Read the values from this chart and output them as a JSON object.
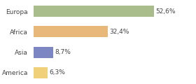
{
  "categories": [
    "Europa",
    "Africa",
    "Asia",
    "America"
  ],
  "values": [
    52.6,
    32.4,
    8.7,
    6.3
  ],
  "labels": [
    "52,6%",
    "32,4%",
    "8,7%",
    "6,3%"
  ],
  "bar_colors": [
    "#a8bc8c",
    "#e8b87a",
    "#7b86c2",
    "#f0d078"
  ],
  "background_color": "#ffffff",
  "xlim": [
    0,
    70
  ],
  "label_fontsize": 6.5,
  "tick_fontsize": 6.5,
  "bar_height": 0.55,
  "figsize": [
    2.8,
    1.2
  ],
  "dpi": 100
}
